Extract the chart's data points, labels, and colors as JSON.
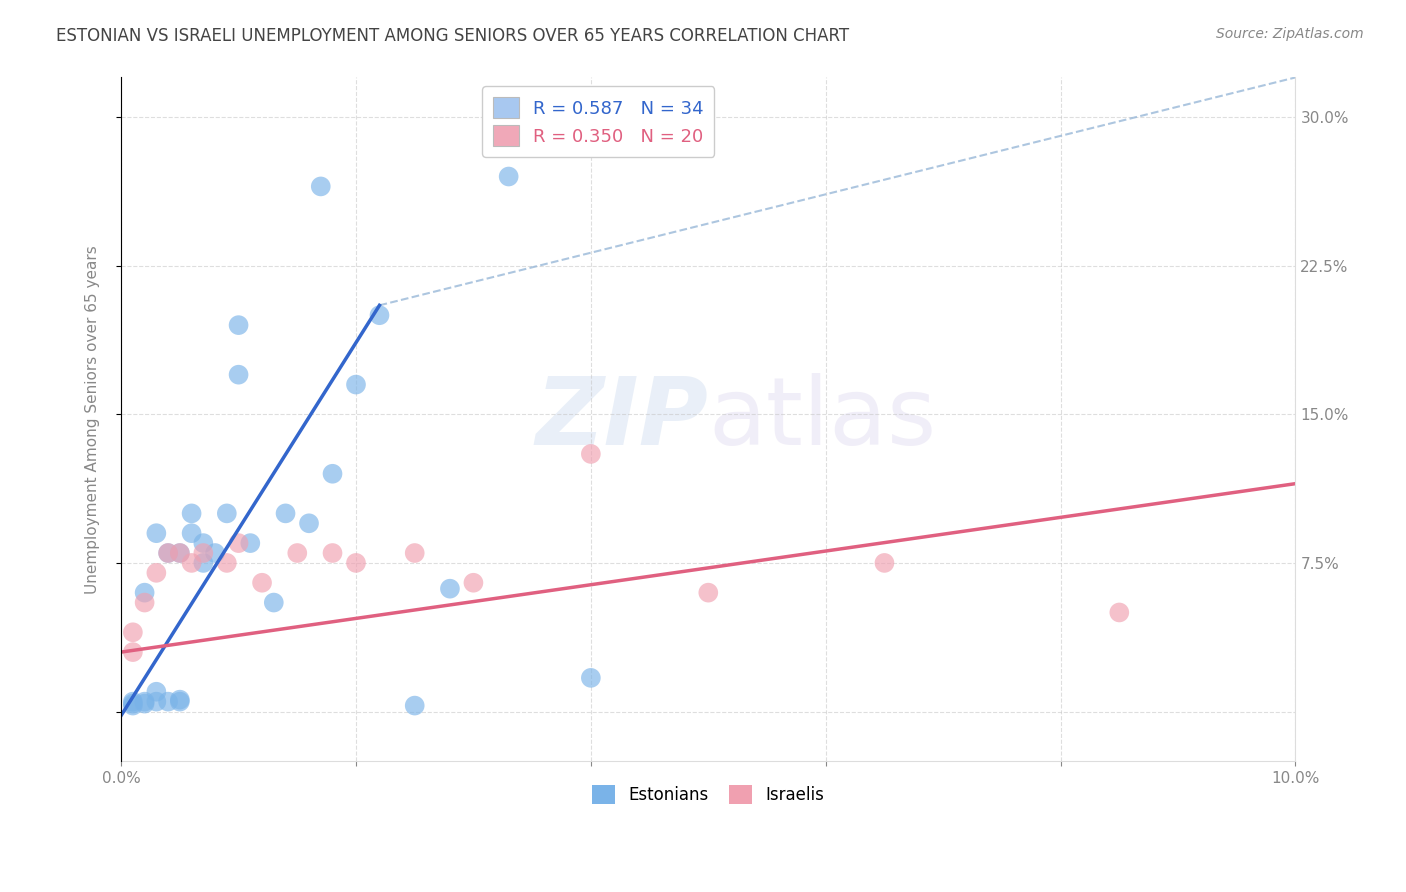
{
  "title": "ESTONIAN VS ISRAELI UNEMPLOYMENT AMONG SENIORS OVER 65 YEARS CORRELATION CHART",
  "source": "Source: ZipAtlas.com",
  "ylabel": "Unemployment Among Seniors over 65 years",
  "xlabel": "",
  "xlim": [
    0.0,
    0.1
  ],
  "ylim": [
    -0.025,
    0.32
  ],
  "xticks": [
    0.0,
    0.02,
    0.04,
    0.06,
    0.08,
    0.1
  ],
  "xtick_labels": [
    "0.0%",
    "",
    "",
    "",
    "",
    "10.0%"
  ],
  "yticks": [
    0.0,
    0.075,
    0.15,
    0.225,
    0.3
  ],
  "ytick_labels": [
    "",
    "7.5%",
    "15.0%",
    "22.5%",
    "30.0%"
  ],
  "legend_items": [
    {
      "label": "R = 0.587   N = 34",
      "color": "#a8c8f0"
    },
    {
      "label": "R = 0.350   N = 20",
      "color": "#f0a8b8"
    }
  ],
  "legend_label_estonians": "Estonians",
  "legend_label_israelis": "Israelis",
  "watermark_zip": "ZIP",
  "watermark_atlas": "atlas",
  "estonian_color": "#7ab3e8",
  "israeli_color": "#f0a0b0",
  "trendline_estonian_color": "#3366cc",
  "trendline_israeli_color": "#e06080",
  "trendline_dashed_color": "#99b8d8",
  "estonian_trendline_x": [
    0.0,
    0.022
  ],
  "estonian_trendline_y": [
    -0.002,
    0.205
  ],
  "dashed_trendline_x": [
    0.022,
    0.1
  ],
  "dashed_trendline_y": [
    0.205,
    0.32
  ],
  "israeli_trendline_x": [
    0.0,
    0.1
  ],
  "israeli_trendline_y": [
    0.03,
    0.115
  ],
  "estonian_x": [
    0.001,
    0.001,
    0.001,
    0.002,
    0.002,
    0.002,
    0.003,
    0.003,
    0.003,
    0.004,
    0.004,
    0.005,
    0.005,
    0.005,
    0.006,
    0.006,
    0.007,
    0.007,
    0.008,
    0.009,
    0.01,
    0.01,
    0.011,
    0.013,
    0.014,
    0.016,
    0.017,
    0.018,
    0.02,
    0.022,
    0.025,
    0.028,
    0.033,
    0.04
  ],
  "estonian_y": [
    0.005,
    0.003,
    0.004,
    0.005,
    0.06,
    0.004,
    0.005,
    0.09,
    0.01,
    0.005,
    0.08,
    0.005,
    0.006,
    0.08,
    0.09,
    0.1,
    0.085,
    0.075,
    0.08,
    0.1,
    0.17,
    0.195,
    0.085,
    0.055,
    0.1,
    0.095,
    0.265,
    0.12,
    0.165,
    0.2,
    0.003,
    0.062,
    0.27,
    0.017
  ],
  "israeli_x": [
    0.001,
    0.001,
    0.002,
    0.003,
    0.004,
    0.005,
    0.006,
    0.007,
    0.009,
    0.01,
    0.012,
    0.015,
    0.018,
    0.02,
    0.025,
    0.03,
    0.04,
    0.05,
    0.065,
    0.085
  ],
  "israeli_y": [
    0.03,
    0.04,
    0.055,
    0.07,
    0.08,
    0.08,
    0.075,
    0.08,
    0.075,
    0.085,
    0.065,
    0.08,
    0.08,
    0.075,
    0.08,
    0.065,
    0.13,
    0.06,
    0.075,
    0.05
  ],
  "background_color": "#ffffff",
  "grid_color": "#c8c8c8",
  "title_color": "#444444",
  "axis_color": "#888888"
}
